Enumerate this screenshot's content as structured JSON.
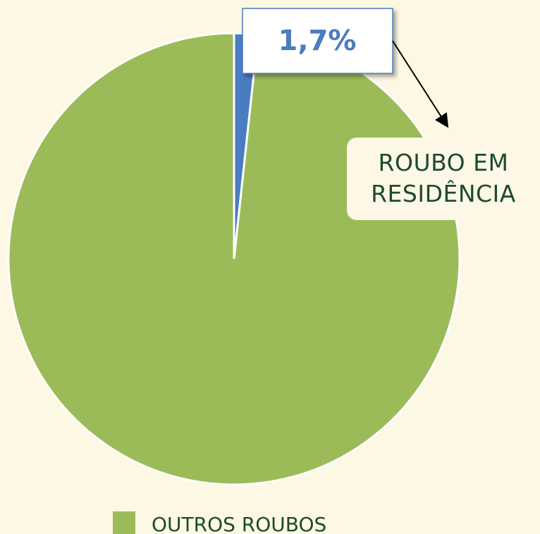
{
  "chart_data": {
    "type": "pie",
    "categories": [
      "ROUBO EM RESIDÊNCIA",
      "OUTROS ROUBOS"
    ],
    "values": [
      1.7,
      98.3
    ],
    "value_labels": [
      "1,7%",
      null
    ],
    "colors": [
      "#4a7cc0",
      "#9bbb59"
    ]
  }
}
